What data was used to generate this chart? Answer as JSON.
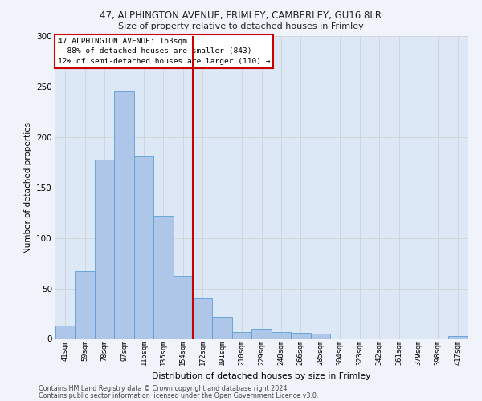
{
  "title1": "47, ALPHINGTON AVENUE, FRIMLEY, CAMBERLEY, GU16 8LR",
  "title2": "Size of property relative to detached houses in Frimley",
  "xlabel": "Distribution of detached houses by size in Frimley",
  "ylabel": "Number of detached properties",
  "footer1": "Contains HM Land Registry data © Crown copyright and database right 2024.",
  "footer2": "Contains public sector information licensed under the Open Government Licence v3.0.",
  "bar_labels": [
    "41sqm",
    "59sqm",
    "78sqm",
    "97sqm",
    "116sqm",
    "135sqm",
    "154sqm",
    "172sqm",
    "191sqm",
    "210sqm",
    "229sqm",
    "248sqm",
    "266sqm",
    "285sqm",
    "304sqm",
    "323sqm",
    "342sqm",
    "361sqm",
    "379sqm",
    "398sqm",
    "417sqm"
  ],
  "bar_values": [
    13,
    67,
    178,
    245,
    181,
    122,
    62,
    40,
    22,
    7,
    10,
    7,
    6,
    5,
    0,
    0,
    0,
    0,
    0,
    0,
    3
  ],
  "bar_color": "#aec6e8",
  "bar_edge_color": "#5a9fd4",
  "grid_color": "#cccccc",
  "vline_x": 6.5,
  "vline_color": "#cc0000",
  "annotation_text": "47 ALPHINGTON AVENUE: 163sqm\n← 88% of detached houses are smaller (843)\n12% of semi-detached houses are larger (110) →",
  "annotation_box_color": "#cc0000",
  "ylim": [
    0,
    300
  ],
  "yticks": [
    0,
    50,
    100,
    150,
    200,
    250,
    300
  ],
  "background_color": "#f0f4fa",
  "plot_bg_color": "#dce8f5"
}
